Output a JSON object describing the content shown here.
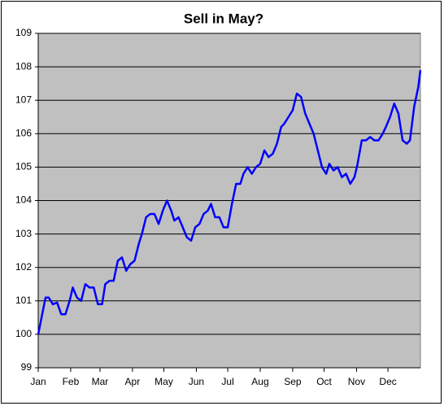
{
  "chart_data": {
    "type": "line",
    "title": "Sell in May?",
    "x": [
      0,
      7,
      10,
      14,
      18,
      22,
      26,
      30,
      33,
      37,
      41,
      45,
      49,
      53,
      57,
      61,
      64,
      68,
      72,
      76,
      80,
      84,
      88,
      92,
      96,
      99,
      103,
      107,
      111,
      115,
      119,
      123,
      127,
      130,
      134,
      138,
      142,
      146,
      150,
      154,
      158,
      162,
      165,
      169,
      173,
      177,
      181,
      185,
      189,
      193,
      196,
      200,
      204,
      208,
      212,
      216,
      220,
      224,
      228,
      232,
      235,
      239,
      243,
      247,
      251,
      255,
      259,
      263,
      267,
      271,
      275,
      278,
      282,
      286,
      290,
      294,
      298,
      302,
      305,
      309,
      313,
      317,
      321,
      325,
      329,
      332,
      336,
      340,
      344,
      348,
      352,
      355,
      359,
      363,
      365
    ],
    "values": [
      100.0,
      101.1,
      101.1,
      100.9,
      100.95,
      100.6,
      100.6,
      101.0,
      101.4,
      101.1,
      101.0,
      101.5,
      101.4,
      101.4,
      100.9,
      100.9,
      101.5,
      101.6,
      101.6,
      102.2,
      102.3,
      101.9,
      102.1,
      102.2,
      102.7,
      103.0,
      103.5,
      103.6,
      103.6,
      103.3,
      103.7,
      104.0,
      103.7,
      103.4,
      103.5,
      103.2,
      102.9,
      102.8,
      103.2,
      103.3,
      103.6,
      103.7,
      103.9,
      103.5,
      103.5,
      103.2,
      103.2,
      103.9,
      104.5,
      104.5,
      104.8,
      105.0,
      104.8,
      105.0,
      105.1,
      105.5,
      105.3,
      105.4,
      105.7,
      106.2,
      106.3,
      106.5,
      106.7,
      107.2,
      107.1,
      106.6,
      106.3,
      106.0,
      105.5,
      105.0,
      104.8,
      105.1,
      104.9,
      105.0,
      104.7,
      104.8,
      104.5,
      104.7,
      105.1,
      105.8,
      105.8,
      105.9,
      105.8,
      105.8,
      106.0,
      106.2,
      106.5,
      106.9,
      106.6,
      105.8,
      105.7,
      105.8,
      106.8,
      107.4,
      107.9
    ],
    "color": "#0000ff",
    "xlim": [
      0,
      365
    ],
    "xticks": [
      {
        "value": 0,
        "label": "Jan"
      },
      {
        "value": 31,
        "label": "Feb"
      },
      {
        "value": 59,
        "label": "Mar"
      },
      {
        "value": 90,
        "label": "Apr"
      },
      {
        "value": 120,
        "label": "May"
      },
      {
        "value": 151,
        "label": "Jun"
      },
      {
        "value": 181,
        "label": "Jul"
      },
      {
        "value": 212,
        "label": "Aug"
      },
      {
        "value": 243,
        "label": "Sep"
      },
      {
        "value": 273,
        "label": "Oct"
      },
      {
        "value": 304,
        "label": "Nov"
      },
      {
        "value": 334,
        "label": "Dec"
      }
    ],
    "ylim": [
      99,
      109
    ],
    "yticks": [
      99,
      100,
      101,
      102,
      103,
      104,
      105,
      106,
      107,
      108,
      109
    ],
    "grid": true
  }
}
